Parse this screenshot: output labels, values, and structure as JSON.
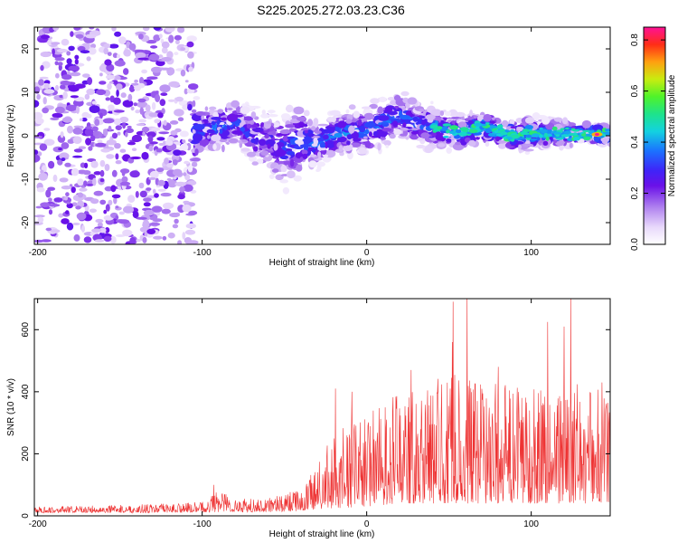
{
  "title": "S225.2025.272.03.23.C36",
  "chart_data": [
    {
      "type": "heatmap",
      "name": "spectrogram",
      "xlabel": "Height of straight line (km)",
      "ylabel": "Frequency (Hz)",
      "xlim": [
        -202,
        148
      ],
      "ylim": [
        -25,
        25
      ],
      "xticks": [
        -200,
        -100,
        0,
        100
      ],
      "yticks": [
        -20,
        -10,
        0,
        10,
        20
      ],
      "colorbar": {
        "label": "Normalized spectral amplitude",
        "range": [
          0.0,
          0.85
        ],
        "ticks": [
          "0.0",
          "0.2",
          "0.4",
          "0.6",
          "0.8"
        ],
        "tick_values": [
          0.0,
          0.2,
          0.4,
          0.6,
          0.8
        ]
      },
      "ridge": {
        "x": [
          -200,
          -150,
          -120,
          -100,
          -90,
          -80,
          -70,
          -60,
          -50,
          -40,
          -30,
          -20,
          -10,
          0,
          10,
          20,
          30,
          40,
          50,
          60,
          70,
          80,
          90,
          100,
          110,
          120,
          130,
          140,
          148
        ],
        "center_hz": [
          0,
          0,
          1,
          1,
          2,
          3,
          0,
          -1,
          -3,
          -1,
          -2,
          0,
          1,
          1,
          3,
          5,
          3,
          2,
          1,
          1,
          2,
          1,
          0,
          0.5,
          0.5,
          0.5,
          0.5,
          0.3,
          0
        ],
        "width_hz": [
          25,
          25,
          22,
          4,
          4,
          4,
          5,
          6,
          7,
          6,
          4,
          4,
          4,
          4,
          4,
          5,
          4,
          4,
          3,
          3,
          3,
          3,
          3,
          3,
          2.5,
          2.5,
          2,
          2,
          2
        ],
        "peak_amplitude": [
          0.22,
          0.22,
          0.18,
          0.32,
          0.38,
          0.3,
          0.28,
          0.26,
          0.3,
          0.34,
          0.34,
          0.36,
          0.36,
          0.34,
          0.36,
          0.32,
          0.36,
          0.32,
          0.38,
          0.44,
          0.46,
          0.44,
          0.44,
          0.42,
          0.42,
          0.44,
          0.46,
          0.55,
          0.48
        ]
      },
      "max_point": {
        "x": 140,
        "hz": 0.3,
        "amplitude": 0.85
      }
    },
    {
      "type": "line",
      "name": "snr",
      "xlabel": "Height of straight line (km)",
      "ylabel": "SNR (10 * v/v)",
      "xlim": [
        -202,
        148
      ],
      "ylim": [
        0,
        700
      ],
      "xticks": [
        -200,
        -100,
        0,
        100
      ],
      "yticks": [
        0,
        200,
        400,
        600
      ],
      "color": "#ee3333",
      "envelope": {
        "x": [
          -202,
          -150,
          -120,
          -100,
          -90,
          -80,
          -70,
          -60,
          -50,
          -40,
          -35,
          -30,
          -20,
          -10,
          0,
          10,
          20,
          30,
          40,
          50,
          60,
          70,
          80,
          90,
          100,
          110,
          120,
          130,
          140,
          148
        ],
        "low": [
          10,
          10,
          10,
          12,
          12,
          12,
          12,
          12,
          14,
          15,
          18,
          20,
          25,
          25,
          30,
          35,
          40,
          40,
          40,
          40,
          40,
          40,
          40,
          40,
          40,
          40,
          40,
          40,
          40,
          40
        ],
        "high": [
          30,
          35,
          40,
          45,
          90,
          60,
          55,
          60,
          70,
          90,
          120,
          180,
          260,
          300,
          330,
          360,
          400,
          420,
          430,
          470,
          450,
          430,
          430,
          420,
          440,
          430,
          420,
          430,
          420,
          400
        ]
      },
      "spikes": [
        {
          "x": -93,
          "y": 100
        },
        {
          "x": -19,
          "y": 410
        },
        {
          "x": -9,
          "y": 400
        },
        {
          "x": 27,
          "y": 470
        },
        {
          "x": 52,
          "y": 560
        },
        {
          "x": 52.5,
          "y": 690
        },
        {
          "x": 61,
          "y": 700
        },
        {
          "x": 80,
          "y": 480
        },
        {
          "x": 110,
          "y": 625
        },
        {
          "x": 120,
          "y": 610
        },
        {
          "x": 124,
          "y": 700
        },
        {
          "x": 143,
          "y": 430
        }
      ]
    }
  ]
}
